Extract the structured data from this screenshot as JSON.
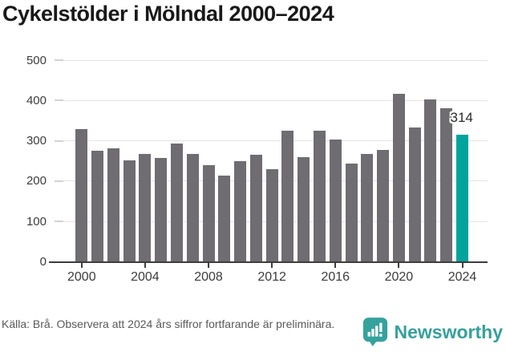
{
  "title": "Cykelstölder i Mölndal 2000–2024",
  "chart_data": {
    "type": "bar",
    "title": "Cykelstölder i Mölndal 2000–2024",
    "categories": [
      2000,
      2001,
      2002,
      2003,
      2004,
      2005,
      2006,
      2007,
      2008,
      2009,
      2010,
      2011,
      2012,
      2013,
      2014,
      2015,
      2016,
      2017,
      2018,
      2019,
      2020,
      2021,
      2022,
      2023,
      2024
    ],
    "values": [
      329,
      275,
      281,
      250,
      267,
      256,
      293,
      267,
      238,
      213,
      248,
      265,
      228,
      324,
      258,
      325,
      302,
      242,
      267,
      277,
      415,
      333,
      401,
      380,
      314
    ],
    "ylim": [
      0,
      500
    ],
    "yticks": [
      0,
      100,
      200,
      300,
      400,
      500
    ],
    "xticks": [
      2000,
      2004,
      2008,
      2012,
      2016,
      2020,
      2024
    ],
    "grid": true,
    "legend": false,
    "bar_color": "#6f6c72",
    "highlight_color": "#00a49c",
    "highlight_index": 24,
    "annotation": {
      "text": "314",
      "year": 2024
    }
  },
  "footer": {
    "source": "Källa: Brå. Observera att 2024 års siffror fortfarande är preliminära.",
    "brand": "Newsworthy"
  }
}
